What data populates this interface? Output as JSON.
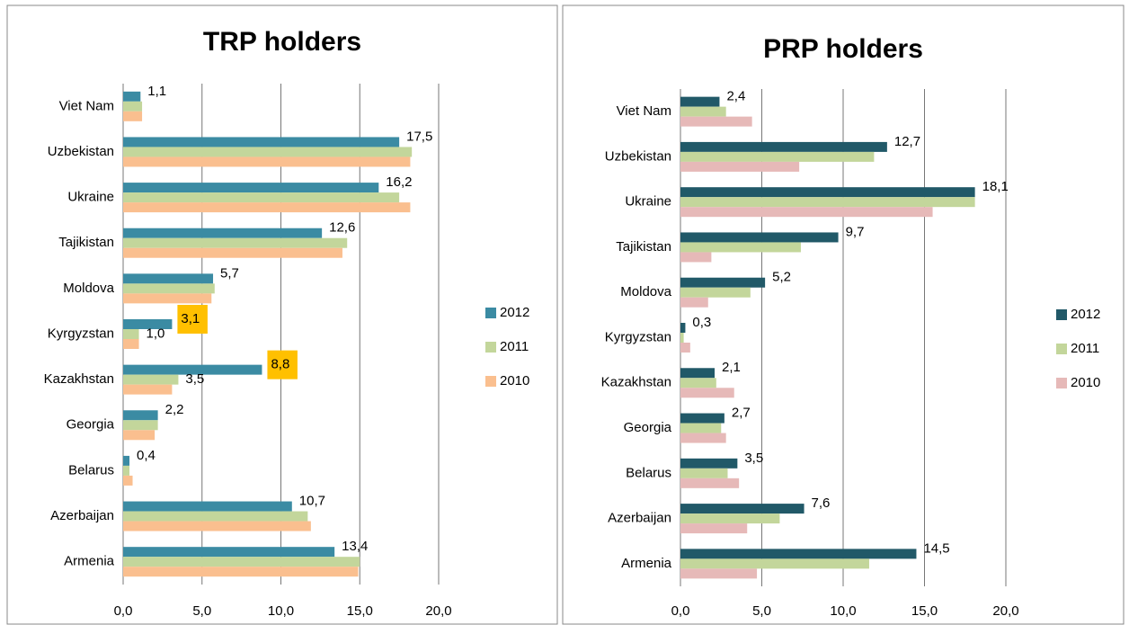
{
  "chart_data": [
    {
      "type": "hbar",
      "title": "TRP holders",
      "categories": [
        "Viet Nam",
        "Uzbekistan",
        "Ukraine",
        "Tajikistan",
        "Moldova",
        "Kyrgyzstan",
        "Kazakhstan",
        "Georgia",
        "Belarus",
        "Azerbaijan",
        "Armenia"
      ],
      "series": [
        {
          "name": "2012",
          "color": "#3b8ba3",
          "values": [
            1.1,
            17.5,
            16.2,
            12.6,
            5.7,
            3.1,
            8.8,
            2.2,
            0.4,
            10.7,
            13.4
          ],
          "value_labels": [
            "1,1",
            "17,5",
            "16,2",
            "12,6",
            "5,7",
            "3,1",
            "8,8",
            "2,2",
            "0,4",
            "10,7",
            "13,4"
          ],
          "label_background": [
            null,
            null,
            null,
            null,
            null,
            "#ffc000",
            "#ffc000",
            null,
            null,
            null,
            null
          ]
        },
        {
          "name": "2011",
          "color": "#c3d69b",
          "values": [
            1.2,
            18.3,
            17.5,
            14.2,
            5.8,
            1.0,
            3.5,
            2.2,
            0.4,
            11.7,
            15.0
          ],
          "value_labels": [
            null,
            null,
            null,
            null,
            null,
            "1,0",
            "3,5",
            null,
            null,
            null,
            null
          ]
        },
        {
          "name": "2010",
          "color": "#fabf8f",
          "values": [
            1.2,
            18.2,
            18.2,
            13.9,
            5.6,
            1.0,
            3.1,
            2.0,
            0.6,
            11.9,
            14.9
          ]
        }
      ],
      "xlim": [
        0,
        20
      ],
      "xticks": [
        {
          "value": 0,
          "label": "0,0"
        },
        {
          "value": 5,
          "label": "5,0"
        },
        {
          "value": 10,
          "label": "10,0"
        },
        {
          "value": 15,
          "label": "15,0"
        },
        {
          "value": 20,
          "label": "20,0"
        }
      ],
      "grid": true,
      "legend": "right"
    },
    {
      "type": "hbar",
      "title": "PRP holders",
      "categories": [
        "Viet Nam",
        "Uzbekistan",
        "Ukraine",
        "Tajikistan",
        "Moldova",
        "Kyrgyzstan",
        "Kazakhstan",
        "Georgia",
        "Belarus",
        "Azerbaijan",
        "Armenia"
      ],
      "series": [
        {
          "name": "2012",
          "color": "#215968",
          "values": [
            2.4,
            12.7,
            18.1,
            9.7,
            5.2,
            0.3,
            2.1,
            2.7,
            3.5,
            7.6,
            14.5
          ],
          "value_labels": [
            "2,4",
            "12,7",
            "18,1",
            "9,7",
            "5,2",
            "0,3",
            "2,1",
            "2,7",
            "3,5",
            "7,6",
            "14,5"
          ]
        },
        {
          "name": "2011",
          "color": "#c3d69b",
          "values": [
            2.8,
            11.9,
            18.1,
            7.4,
            4.3,
            0.2,
            2.2,
            2.5,
            2.9,
            6.1,
            11.6
          ]
        },
        {
          "name": "2010",
          "color": "#e6b9b8",
          "values": [
            4.4,
            7.3,
            15.5,
            1.9,
            1.7,
            0.6,
            3.3,
            2.8,
            3.6,
            4.1,
            4.7
          ]
        }
      ],
      "xlim": [
        0,
        20
      ],
      "xticks": [
        {
          "value": 0,
          "label": "0,0"
        },
        {
          "value": 5,
          "label": "5,0"
        },
        {
          "value": 10,
          "label": "10,0"
        },
        {
          "value": 15,
          "label": "15,0"
        },
        {
          "value": 20,
          "label": "20,0"
        }
      ],
      "grid": true,
      "legend": "right"
    }
  ]
}
